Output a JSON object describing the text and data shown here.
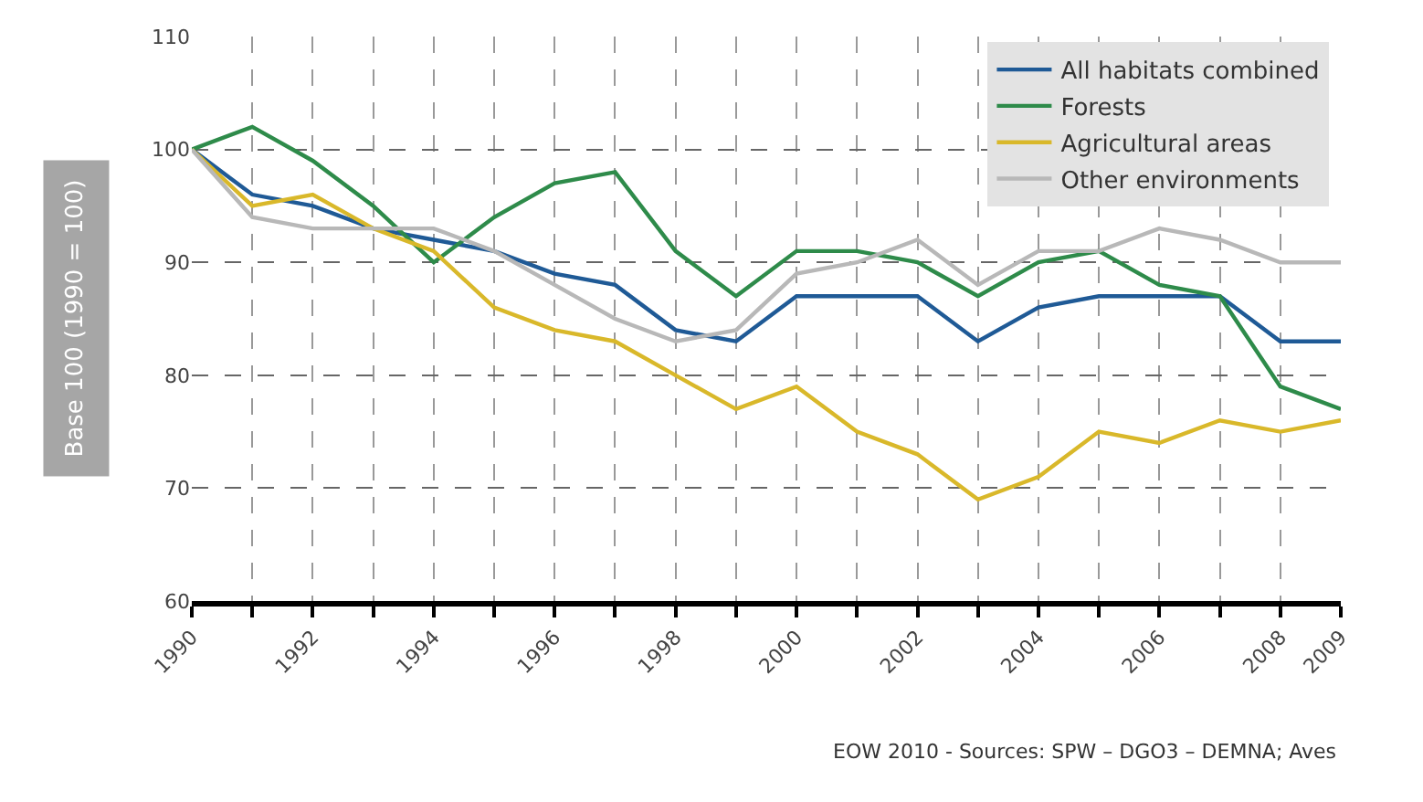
{
  "chart_data": {
    "type": "line",
    "ylabel": "Base 100 (1990 = 100)",
    "x": [
      1990,
      1991,
      1992,
      1993,
      1994,
      1995,
      1996,
      1997,
      1998,
      1999,
      2000,
      2001,
      2002,
      2003,
      2004,
      2005,
      2006,
      2007,
      2008,
      2009
    ],
    "series": [
      {
        "name": "All habitats combined",
        "color": "#1f5a96",
        "values": [
          100,
          96,
          95,
          93,
          92,
          91,
          89,
          88,
          84,
          83,
          87,
          87,
          87,
          83,
          86,
          87,
          87,
          87,
          83,
          83
        ]
      },
      {
        "name": "Forests",
        "color": "#2e8b4a",
        "values": [
          100,
          102,
          99,
          95,
          90,
          94,
          97,
          98,
          91,
          87,
          91,
          91,
          90,
          87,
          90,
          91,
          88,
          87,
          79,
          77
        ]
      },
      {
        "name": "Agricultural areas",
        "color": "#d9b82a",
        "values": [
          100,
          95,
          96,
          93,
          91,
          86,
          84,
          83,
          80,
          77,
          79,
          75,
          73,
          69,
          71,
          75,
          74,
          76,
          75,
          76
        ]
      },
      {
        "name": "Other environments",
        "color": "#b8b8b8",
        "values": [
          100,
          94,
          93,
          93,
          93,
          91,
          88,
          85,
          83,
          84,
          89,
          90,
          92,
          88,
          91,
          91,
          93,
          92,
          90,
          90
        ]
      }
    ],
    "xlim": [
      1990,
      2009
    ],
    "xticks": [
      1990,
      {
        "value": 1991,
        "label": null
      },
      1992,
      {
        "value": 1993,
        "label": null
      },
      1994,
      {
        "value": 1995,
        "label": null
      },
      1996,
      {
        "value": 1997,
        "label": null
      },
      1998,
      {
        "value": 1999,
        "label": null
      },
      2000,
      {
        "value": 2001,
        "label": null
      },
      2002,
      {
        "value": 2003,
        "label": null
      },
      2004,
      {
        "value": 2005,
        "label": null
      },
      2006,
      {
        "value": 2007,
        "label": null
      },
      2008,
      2009
    ],
    "ylim": [
      60,
      110
    ],
    "yticks": [
      60,
      70,
      80,
      90,
      100,
      110
    ],
    "grid": true,
    "legend": "top right",
    "marker": "none",
    "line_style": "solid",
    "annotations": [
      "EOW 2010 - Sources: SPW – DGO3 – DEMNA; Aves"
    ]
  }
}
